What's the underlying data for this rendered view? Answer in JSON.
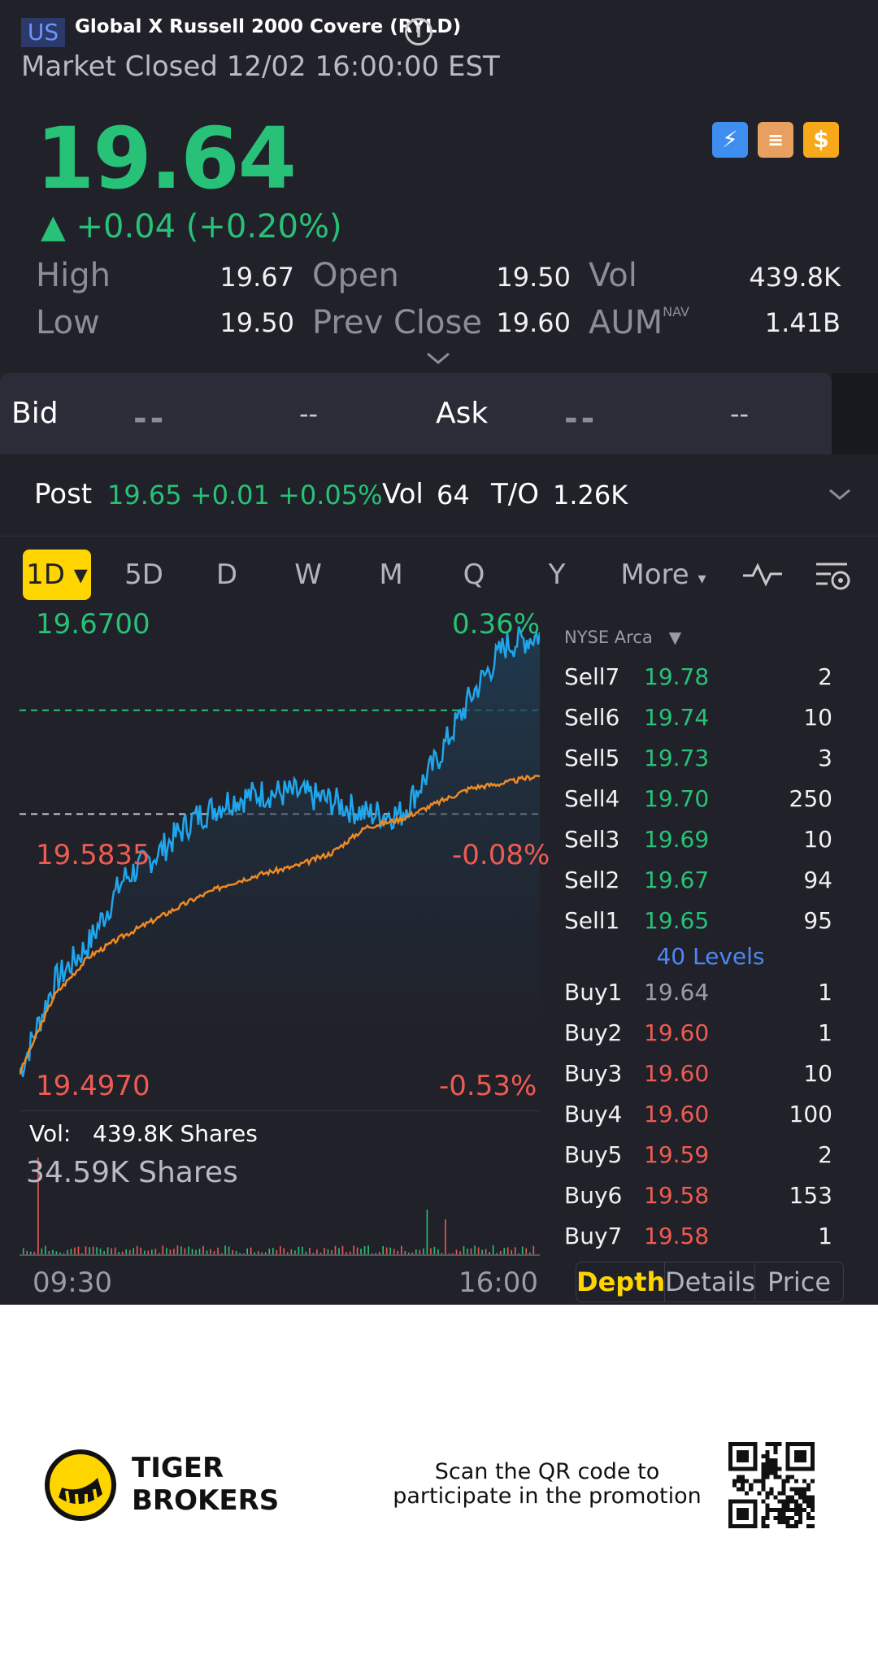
{
  "header": {
    "region_badge": "US",
    "title": "Global X Russell 2000 Covere (RYLD)",
    "info_icon": "info-icon",
    "market_status": "Market Closed 12/02 16:00:00 EST"
  },
  "quote": {
    "price": "19.64",
    "change": "▲ +0.04 (+0.20%)",
    "stats": [
      {
        "label": "High",
        "value": "19.67"
      },
      {
        "label": "Open",
        "value": "19.50"
      },
      {
        "label": "Vol",
        "value": "439.8K"
      },
      {
        "label": "Low",
        "value": "19.50"
      },
      {
        "label": "Prev Close",
        "value": "19.60"
      },
      {
        "label": "AUM",
        "sup": "NAV",
        "value": "1.41B"
      }
    ],
    "badges": [
      "lightning-icon",
      "stack-icon",
      "dollar-icon"
    ]
  },
  "bidask": {
    "bid_label": "Bid",
    "bid_price": "--",
    "bid_size": "--",
    "ask_label": "Ask",
    "ask_price": "--",
    "ask_size": "--"
  },
  "post": {
    "label": "Post",
    "value": "19.65 +0.01 +0.05%",
    "vol_label": "Vol",
    "vol_value": "64",
    "to_label": "T/O",
    "to_value": "1.26K"
  },
  "tabs": {
    "active": "1D",
    "items": [
      "5D",
      "D",
      "W",
      "M",
      "Q",
      "Y",
      "More"
    ]
  },
  "chart_data": {
    "type": "line",
    "series": [
      {
        "name": "",
        "color": "#1fa6ec",
        "values": [
          19.5,
          19.535,
          19.55,
          19.575,
          19.585,
          19.598,
          19.605,
          19.608,
          19.608,
          19.605,
          19.6,
          19.6,
          19.62,
          19.645,
          19.665,
          19.669
        ]
      },
      {
        "name": "",
        "color": "#f08a24",
        "values": [
          19.5,
          19.53,
          19.545,
          19.553,
          19.56,
          19.567,
          19.573,
          19.577,
          19.58,
          19.585,
          19.595,
          19.598,
          19.604,
          19.61,
          19.612,
          19.615
        ]
      }
    ],
    "y_labels": {
      "top": "19.6700",
      "top_pct": "0.36%",
      "mid": "19.5835",
      "mid_pct": "-0.08%",
      "bottom": "19.4970",
      "bottom_pct": "-0.53%"
    },
    "ylim": [
      19.497,
      19.67
    ],
    "prev_close": 19.6,
    "x_labels": [
      "09:30",
      "16:00"
    ],
    "volume": {
      "label": "Vol:",
      "total": "439.8K Shares",
      "max": "34.59K Shares"
    }
  },
  "orderbook": {
    "exchange": "NYSE Arca",
    "sells": [
      {
        "side": "Sell7",
        "price": "19.78",
        "qty": "2"
      },
      {
        "side": "Sell6",
        "price": "19.74",
        "qty": "10"
      },
      {
        "side": "Sell5",
        "price": "19.73",
        "qty": "3"
      },
      {
        "side": "Sell4",
        "price": "19.70",
        "qty": "250"
      },
      {
        "side": "Sell3",
        "price": "19.69",
        "qty": "10"
      },
      {
        "side": "Sell2",
        "price": "19.67",
        "qty": "94"
      },
      {
        "side": "Sell1",
        "price": "19.65",
        "qty": "95"
      }
    ],
    "levels": "40 Levels",
    "buys": [
      {
        "side": "Buy1",
        "price": "19.64",
        "qty": "1"
      },
      {
        "side": "Buy2",
        "price": "19.60",
        "qty": "1"
      },
      {
        "side": "Buy3",
        "price": "19.60",
        "qty": "10"
      },
      {
        "side": "Buy4",
        "price": "19.60",
        "qty": "100"
      },
      {
        "side": "Buy5",
        "price": "19.59",
        "qty": "2"
      },
      {
        "side": "Buy6",
        "price": "19.58",
        "qty": "153"
      },
      {
        "side": "Buy7",
        "price": "19.58",
        "qty": "1"
      }
    ],
    "segments": [
      "Depth",
      "Details",
      "Price"
    ]
  },
  "footer": {
    "brand_line1": "TIGER",
    "brand_line2": "BROKERS",
    "promo": "Scan the QR code to participate in the promotion"
  },
  "colors": {
    "up": "#27c277",
    "down": "#ef5b52",
    "accent": "#ffd500",
    "line": "#1fa6ec",
    "avg": "#f08a24"
  }
}
